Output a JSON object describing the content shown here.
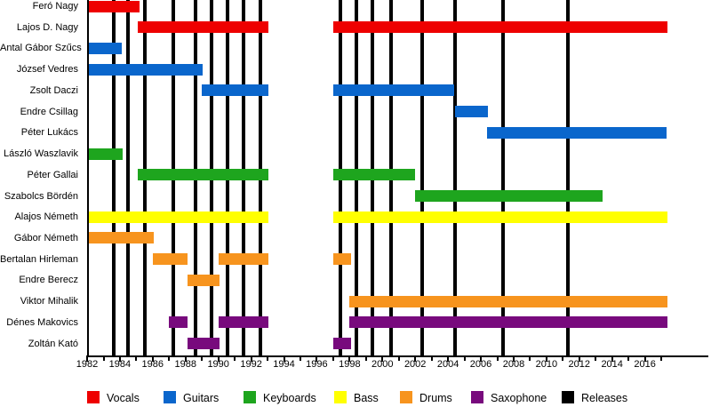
{
  "chart_data": {
    "type": "gantt",
    "title": "",
    "axis": {
      "x_min": 1982,
      "tick_start": 1982,
      "tick_end": 2017,
      "label_step": 2,
      "tick_labels": [
        "1982",
        "1984",
        "1986",
        "1988",
        "1990",
        "1992",
        "1994",
        "1996",
        "1998",
        "2000",
        "2002",
        "2004",
        "2006",
        "2008",
        "2010",
        "2012",
        "2014",
        "2016"
      ]
    },
    "colors": {
      "vocals": "#ee0000",
      "guitars": "#0a66cc",
      "keyboards": "#1ea51e",
      "bass": "#ffff00",
      "drums": "#f7941e",
      "saxophone": "#780a7d",
      "releases": "#000000"
    },
    "members": [
      {
        "name": "Feró Nagy",
        "role": "vocals",
        "stints": [
          [
            1982,
            1985.2
          ]
        ]
      },
      {
        "name": "Lajos D. Nagy",
        "role": "vocals",
        "stints": [
          [
            1985.1,
            1993.05
          ],
          [
            1997,
            2017.35
          ]
        ]
      },
      {
        "name": "Antal Gábor Szűcs",
        "role": "guitars",
        "stints": [
          [
            1982,
            1984.1
          ]
        ]
      },
      {
        "name": "József Vedres",
        "role": "guitars",
        "stints": [
          [
            1982,
            1989.05
          ]
        ]
      },
      {
        "name": "Zsolt Daczi",
        "role": "guitars",
        "stints": [
          [
            1989,
            1993.05
          ],
          [
            1997,
            2004.4
          ]
        ]
      },
      {
        "name": "Endre Csillag",
        "role": "guitars",
        "stints": [
          [
            2004.4,
            2006.45
          ]
        ]
      },
      {
        "name": "Péter Lukács",
        "role": "guitars",
        "stints": [
          [
            2006.4,
            2017.35
          ]
        ]
      },
      {
        "name": "László Waszlavik",
        "role": "keyboards",
        "stints": [
          [
            1982,
            1984.15
          ]
        ]
      },
      {
        "name": "Péter Gallai",
        "role": "keyboards",
        "stints": [
          [
            1985.1,
            1993.05
          ],
          [
            1997,
            2002
          ]
        ]
      },
      {
        "name": "Szabolcs Bördén",
        "role": "keyboards",
        "stints": [
          [
            2002,
            2013.4
          ]
        ]
      },
      {
        "name": "Alajos Németh",
        "role": "bass",
        "stints": [
          [
            1982,
            1993.05
          ],
          [
            1997,
            2017.35
          ]
        ]
      },
      {
        "name": "Gábor Németh",
        "role": "drums",
        "stints": [
          [
            1982,
            1986.05
          ]
        ]
      },
      {
        "name": "Bertalan Hirleman",
        "role": "drums",
        "stints": [
          [
            1986,
            1988.15
          ],
          [
            1990,
            1993.05
          ],
          [
            1997,
            1998.1
          ]
        ]
      },
      {
        "name": "Endre Berecz",
        "role": "drums",
        "stints": [
          [
            1988.1,
            1990.05
          ]
        ]
      },
      {
        "name": "Viktor Mihalik",
        "role": "drums",
        "stints": [
          [
            1998,
            2017.35
          ]
        ]
      },
      {
        "name": "Dénes Makovics",
        "role": "saxophone",
        "stints": [
          [
            1987,
            1988.15
          ],
          [
            1990,
            1993.05
          ],
          [
            1998,
            2017.35
          ]
        ]
      },
      {
        "name": "Zoltán Kató",
        "role": "saxophone",
        "stints": [
          [
            1988.1,
            1990.05
          ],
          [
            1997,
            1998.1
          ]
        ]
      }
    ],
    "releases": [
      1983.6,
      1984.5,
      1985.5,
      1987.25,
      1988.6,
      1989.6,
      1990.55,
      1991.55,
      1992.55,
      1997.45,
      1998.4,
      1999.4,
      2000.5,
      2002.4,
      2004.4,
      2007.35,
      2011.3
    ],
    "legend": [
      {
        "key": "vocals",
        "label": "Vocals"
      },
      {
        "key": "guitars",
        "label": "Guitars"
      },
      {
        "key": "keyboards",
        "label": "Keyboards"
      },
      {
        "key": "bass",
        "label": "Bass"
      },
      {
        "key": "drums",
        "label": "Drums"
      },
      {
        "key": "saxophone",
        "label": "Saxophone"
      },
      {
        "key": "releases",
        "label": "Releases"
      }
    ]
  }
}
